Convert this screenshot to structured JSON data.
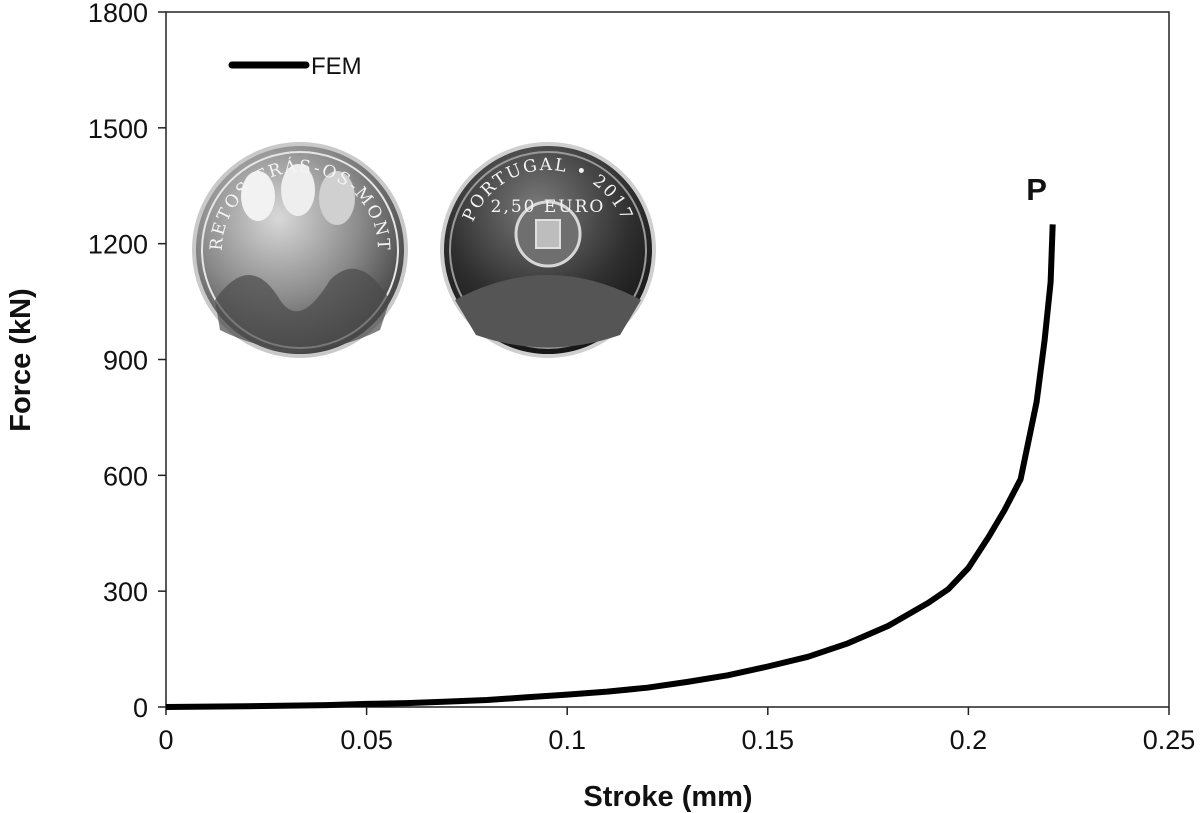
{
  "chart_data": {
    "type": "line",
    "title": "",
    "xlabel": "Stroke (mm)",
    "ylabel": "Force (kN)",
    "xlim": [
      0,
      0.25
    ],
    "ylim": [
      0,
      1800
    ],
    "x_ticks": [
      "0",
      "0.05",
      "0.1",
      "0.15",
      "0.2",
      "0.25"
    ],
    "y_ticks": [
      "0",
      "300",
      "600",
      "900",
      "1200",
      "1500",
      "1800"
    ],
    "grid": false,
    "legend_position": "top-left",
    "series": [
      {
        "name": "FEM",
        "color": "#000000",
        "x": [
          0,
          0.02,
          0.04,
          0.05,
          0.06,
          0.07,
          0.08,
          0.09,
          0.1,
          0.11,
          0.12,
          0.13,
          0.14,
          0.15,
          0.16,
          0.17,
          0.18,
          0.19,
          0.195,
          0.2,
          0.205,
          0.209,
          0.213,
          0.215,
          0.217,
          0.219,
          0.2205,
          0.221
        ],
        "y": [
          0,
          2,
          5,
          8,
          10,
          14,
          18,
          25,
          32,
          40,
          50,
          65,
          82,
          105,
          130,
          165,
          210,
          270,
          305,
          360,
          440,
          510,
          590,
          690,
          790,
          950,
          1100,
          1250
        ]
      }
    ],
    "annotations": [
      {
        "text": "P",
        "x": 0.217,
        "y": 1300
      }
    ]
  },
  "images": {
    "coin_left_text": "CARETOS TRÁS-OS-MONTES",
    "coin_right_text": "PORTUGAL • 2017",
    "coin_right_value": "2,50 EURO"
  }
}
